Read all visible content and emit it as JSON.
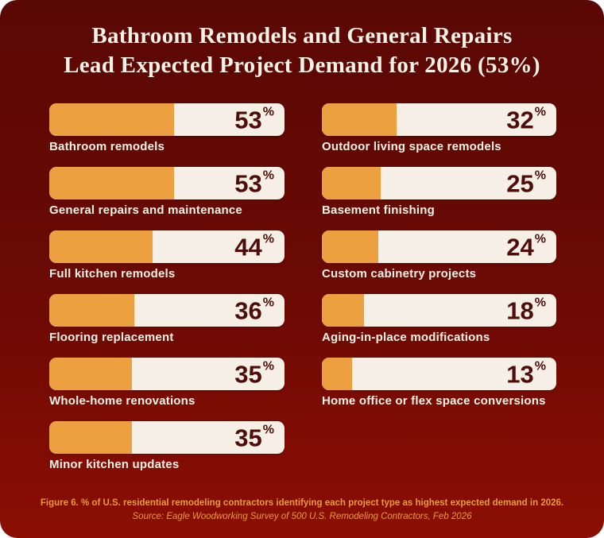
{
  "percent_symbol": "%",
  "title": {
    "lines": [
      "Bathroom Remodels and General Repairs",
      "Lead Expected Project Demand for 2026 (53%)"
    ]
  },
  "columns": {
    "left": [
      {
        "label": "Bathroom remodels",
        "value": 53
      },
      {
        "label": "General repairs and maintenance",
        "value": 53
      },
      {
        "label": "Full kitchen remodels",
        "value": 44
      },
      {
        "label": "Flooring replacement",
        "value": 36
      },
      {
        "label": "Whole-home renovations",
        "value": 35
      },
      {
        "label": "Minor kitchen updates",
        "value": 35
      }
    ],
    "right": [
      {
        "label": "Outdoor living space remodels",
        "value": 32
      },
      {
        "label": "Basement finishing",
        "value": 25
      },
      {
        "label": "Custom cabinetry projects",
        "value": 24
      },
      {
        "label": "Aging-in-place modifications",
        "value": 18
      },
      {
        "label": "Home office or flex space conversions",
        "value": 13
      }
    ]
  },
  "footer": {
    "caption": "Figure 6. % of U.S. residential remodeling contractors identifying each project type as highest expected demand in 2026.",
    "source": "Source: Eagle Woodworking Survey of 500 U.S. Remodeling Contractors, Feb 2026"
  },
  "colors": {
    "background_top": "#5a0805",
    "background_bottom": "#8c0e03",
    "bar_track": "#f5efe6",
    "bar_fill": "#eda03f",
    "value_text": "#4e0d08",
    "label_text": "#f8f2e6",
    "title_text": "#f7f1e6",
    "footer_text": "#e79a3b"
  },
  "chart_data": {
    "type": "bar",
    "orientation": "horizontal",
    "title": "Bathroom Remodels and General Repairs Lead Expected Project Demand for 2026 (53%)",
    "unit": "%",
    "xlim": [
      0,
      100
    ],
    "grid": false,
    "legend": false,
    "categories": [
      "Bathroom remodels",
      "General repairs and maintenance",
      "Full kitchen remodels",
      "Flooring replacement",
      "Whole-home renovations",
      "Minor kitchen updates",
      "Outdoor living space remodels",
      "Basement finishing",
      "Custom cabinetry projects",
      "Aging-in-place modifications",
      "Home office or flex space conversions"
    ],
    "values": [
      53,
      53,
      44,
      36,
      35,
      35,
      32,
      25,
      24,
      18,
      13
    ],
    "caption": "Figure 6. % of U.S. residential remodeling contractors identifying each project type as highest expected demand in 2026.",
    "source": "Source: Eagle Woodworking Survey of 500 U.S. Remodeling Contractors, Feb 2026"
  }
}
